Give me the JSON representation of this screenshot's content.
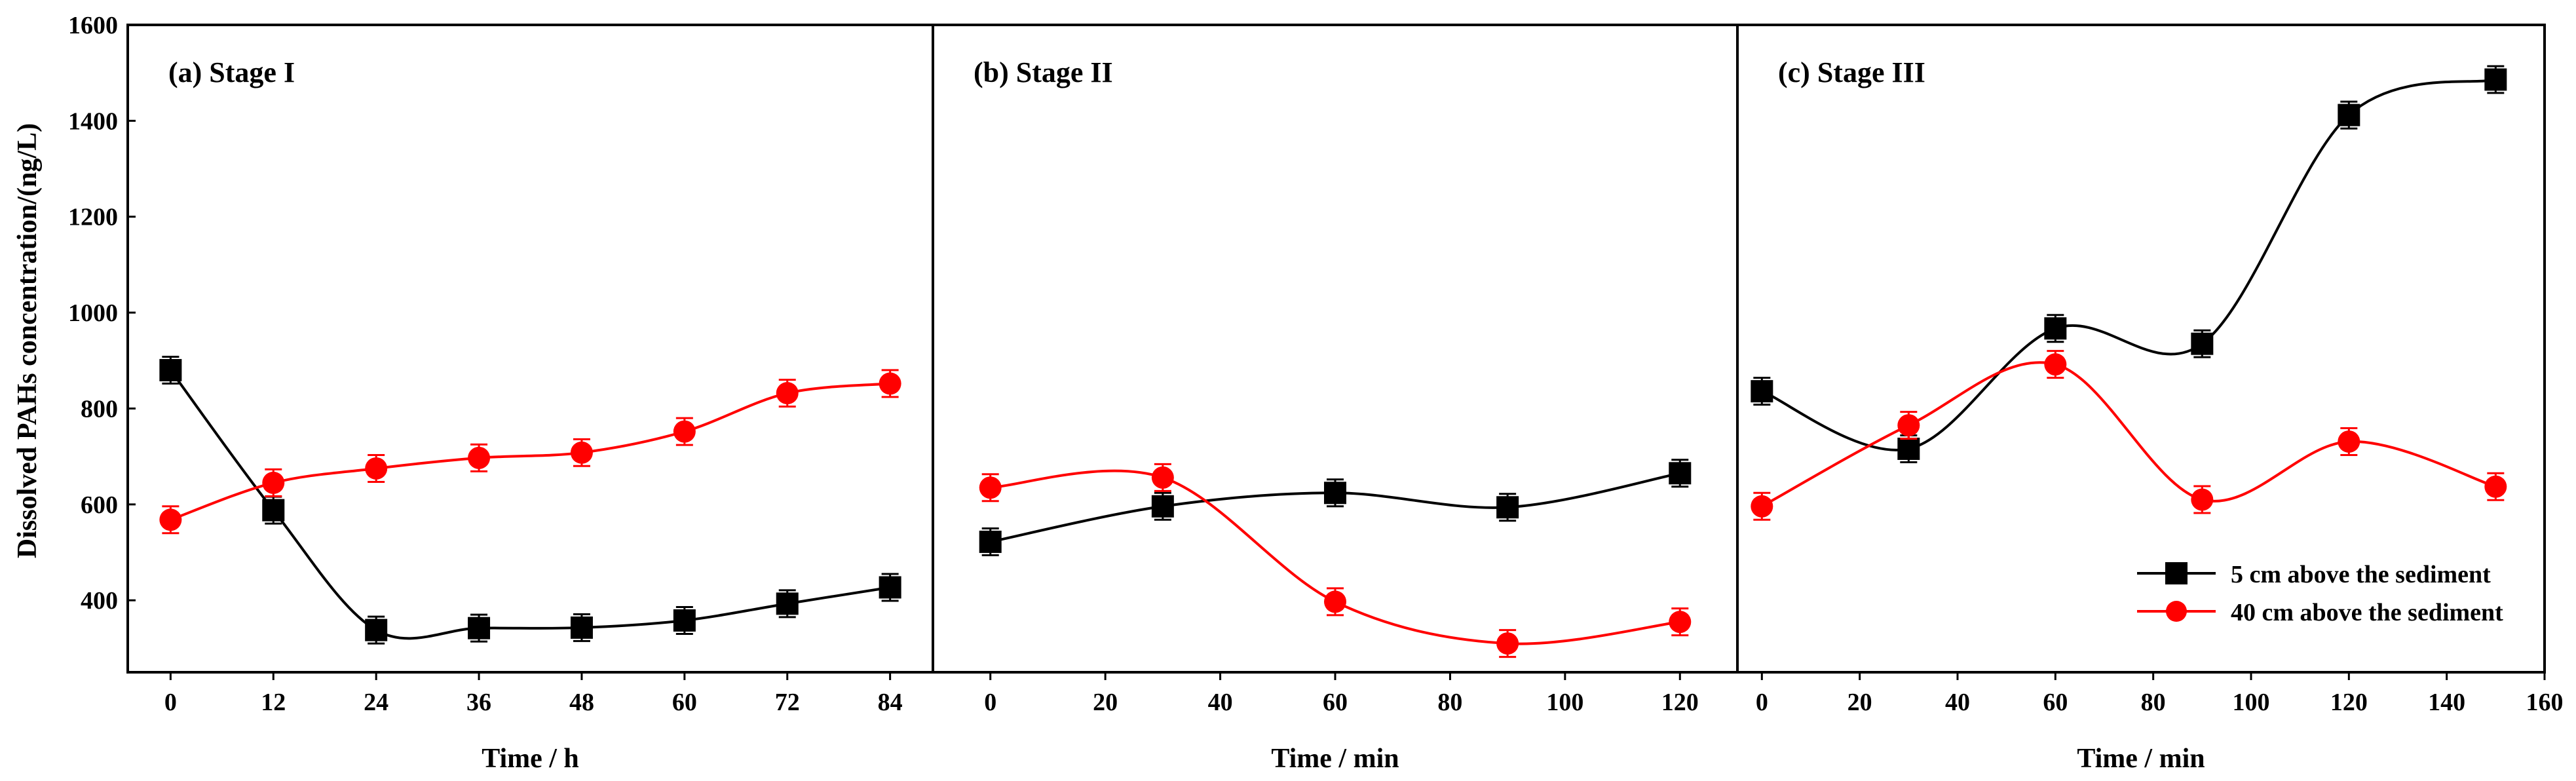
{
  "chart_data": {
    "type": "line",
    "ylabel": "Dissolved PAHs concentration/(ng/L)",
    "ylim": [
      250,
      1600
    ],
    "yticks": [
      400,
      600,
      800,
      1000,
      1200,
      1400,
      1600
    ],
    "legend": {
      "placement": "bottom-right",
      "entries": [
        "5 cm above the sediment",
        "40 cm above the sediment"
      ]
    },
    "colors": {
      "series_5cm": "#000000",
      "series_40cm": "#ff0000"
    },
    "panels": [
      {
        "title": "(a) Stage I",
        "xlabel": "Time / h",
        "xlim": [
          -5,
          89
        ],
        "xticks": [
          0,
          12,
          24,
          36,
          48,
          60,
          72,
          84
        ],
        "series": [
          {
            "name": "5 cm above the sediment",
            "marker": "square",
            "x": [
              0,
              12,
              24,
              36,
              48,
              60,
              72,
              84
            ],
            "y": [
              880,
              588,
              338,
              342,
              343,
              358,
              393,
              427
            ],
            "err": [
              28,
              28,
              28,
              28,
              28,
              28,
              28,
              28
            ]
          },
          {
            "name": "40 cm above the sediment",
            "marker": "circle",
            "x": [
              0,
              12,
              24,
              36,
              48,
              60,
              72,
              84
            ],
            "y": [
              568,
              645,
              675,
              697,
              708,
              752,
              832,
              852
            ],
            "err": [
              28,
              28,
              28,
              28,
              28,
              28,
              28,
              28
            ]
          }
        ]
      },
      {
        "title": "(b) Stage II",
        "xlabel": "Time / min",
        "xlim": [
          -10,
          130
        ],
        "xticks": [
          0,
          20,
          40,
          60,
          80,
          100,
          120
        ],
        "series": [
          {
            "name": "5 cm above the sediment",
            "marker": "square",
            "x": [
              0,
              30,
              60,
              90,
              120
            ],
            "y": [
              522,
              596,
              624,
              594,
              665
            ],
            "err": [
              28,
              28,
              28,
              28,
              28
            ]
          },
          {
            "name": "40 cm above the sediment",
            "marker": "circle",
            "x": [
              0,
              30,
              60,
              90,
              120
            ],
            "y": [
              635,
              656,
              397,
              310,
              355
            ],
            "err": [
              28,
              28,
              28,
              28,
              28
            ]
          }
        ]
      },
      {
        "title": "(c) Stage III",
        "xlabel": "Time / min",
        "xlim": [
          -5,
          160
        ],
        "xticks": [
          0,
          20,
          40,
          60,
          80,
          100,
          120,
          140,
          160
        ],
        "series": [
          {
            "name": "5 cm above the sediment",
            "marker": "square",
            "x": [
              0,
              30,
              60,
              90,
              120,
              150
            ],
            "y": [
              836,
              716,
              967,
              935,
              1412,
              1486
            ],
            "err": [
              28,
              28,
              28,
              28,
              28,
              28
            ]
          },
          {
            "name": "40 cm above the sediment",
            "marker": "circle",
            "x": [
              0,
              30,
              60,
              90,
              120,
              150
            ],
            "y": [
              596,
              765,
              892,
              610,
              731,
              637
            ],
            "err": [
              28,
              28,
              28,
              28,
              28,
              28
            ]
          }
        ]
      }
    ]
  }
}
